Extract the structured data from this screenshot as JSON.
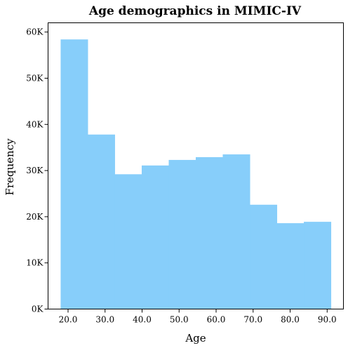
{
  "chart_data": {
    "type": "bar",
    "title": "Age demographics in MIMIC-IV",
    "xlabel": "Age",
    "ylabel": "Frequency",
    "bar_color": "#87cefa",
    "xlim": [
      14.6,
      94.4
    ],
    "ylim": [
      0,
      62000
    ],
    "bin_edges": [
      18,
      25.3,
      32.6,
      39.9,
      47.2,
      54.5,
      61.8,
      69.1,
      76.4,
      83.7,
      91
    ],
    "values": [
      58400,
      37800,
      29200,
      31100,
      32300,
      32900,
      33500,
      22600,
      18600,
      18900
    ],
    "x_ticks": [
      20,
      30,
      40,
      50,
      60,
      70,
      80,
      90
    ],
    "x_tick_labels": [
      "20.0",
      "30.0",
      "40.0",
      "50.0",
      "60.0",
      "70.0",
      "80.0",
      "90.0"
    ],
    "y_ticks": [
      0,
      10000,
      20000,
      30000,
      40000,
      50000,
      60000
    ],
    "y_tick_labels": [
      "0K",
      "10K",
      "20K",
      "30K",
      "40K",
      "50K",
      "60K"
    ],
    "grid": false,
    "legend": null
  }
}
